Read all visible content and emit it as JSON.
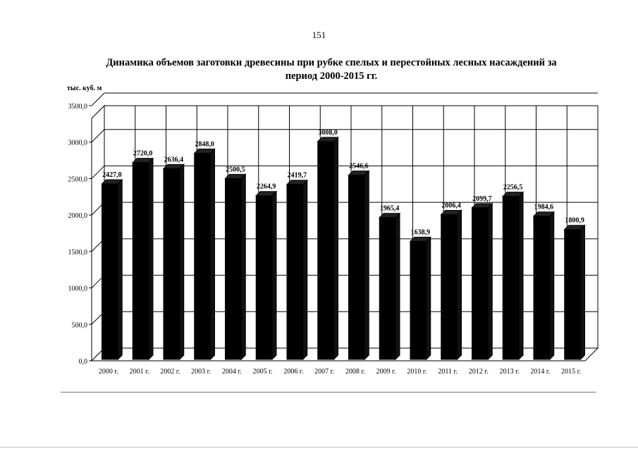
{
  "page_number": "151",
  "chart_data": {
    "type": "bar",
    "title": "Динамика объемов заготовки древесины при рубке спелых и перестойных лесных насаждений за период 2000-2015 гг.",
    "ylabel": "тыс. куб. м",
    "xlabel": "",
    "ylim": [
      0,
      3500
    ],
    "grid": true,
    "legend": "none",
    "y_ticks": [
      "0,0",
      "500,0",
      "1000,0",
      "1500,0",
      "2000,0",
      "2500,0",
      "3000,0",
      "3500,0"
    ],
    "categories": [
      "2000 г.",
      "2001 г.",
      "2002 г.",
      "2003 г.",
      "2004 г.",
      "2005 г.",
      "2006 г.",
      "2007 г.",
      "2008 г.",
      "2009 г.",
      "2010 г.",
      "2011 г.",
      "2012 г.",
      "2013 г.",
      "2014 г.",
      "2015 г."
    ],
    "values": [
      2427.0,
      2720.0,
      2636.4,
      2848.0,
      2500.5,
      2264.9,
      2419.7,
      3008.0,
      2546.6,
      1965.4,
      1638.9,
      2006.4,
      2099.7,
      2256.5,
      1984.6,
      1800.9
    ],
    "data_labels": [
      "2427,0",
      "2720,0",
      "2636,4",
      "2848,0",
      "2500,5",
      "2264,9",
      "2419,7",
      "3008,0",
      "2546,6",
      "1965,4",
      "1638,9",
      "2006,4",
      "2099,7",
      "2256,5",
      "1984,6",
      "1800,9"
    ],
    "bar_color": "#000000"
  }
}
